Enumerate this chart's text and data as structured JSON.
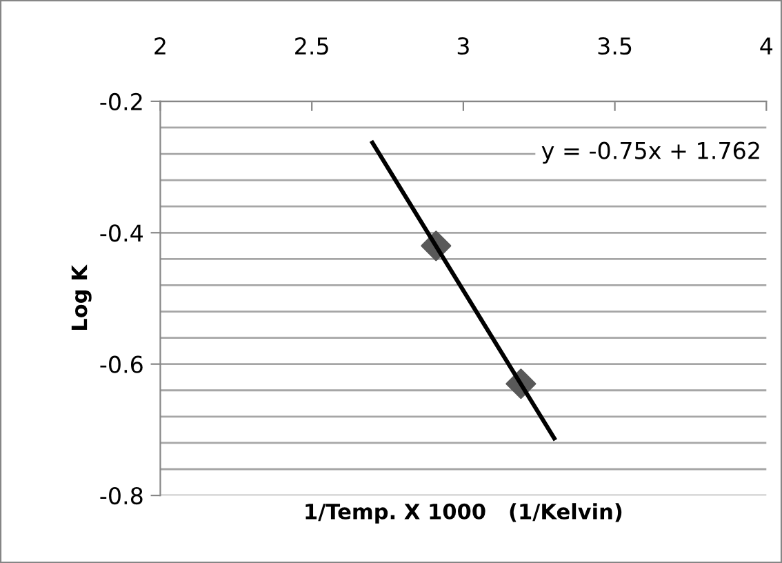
{
  "chart_data": {
    "type": "scatter",
    "xlabel": "1/Temp. X 1000   (1/Kelvin)",
    "ylabel": "Log K",
    "series": [
      {
        "color": "#595959",
        "x": [
          2.91,
          3.19
        ],
        "values": [
          -0.42,
          -0.63
        ],
        "marker": "diamond"
      },
      {
        "type": "line",
        "color": "#000000",
        "x": [
          2.7,
          3.3
        ],
        "values": [
          -0.263,
          -0.713
        ],
        "marker": "none"
      }
    ],
    "annotations": [
      "y = -0.75x + 1.762"
    ],
    "xlim": [
      2,
      4
    ],
    "xticks": [
      2,
      2.5,
      3,
      3.5,
      4
    ],
    "ylim": [
      -0.8,
      -0.2
    ],
    "yticks": [
      -0.8,
      {
        "value": -0.76,
        "label": null
      },
      {
        "value": -0.72,
        "label": null
      },
      {
        "value": -0.68,
        "label": null
      },
      {
        "value": -0.64,
        "label": null
      },
      -0.6,
      {
        "value": -0.56,
        "label": null
      },
      {
        "value": -0.52,
        "label": null
      },
      {
        "value": -0.48,
        "label": null
      },
      {
        "value": -0.44,
        "label": null
      },
      -0.4,
      {
        "value": -0.36,
        "label": null
      },
      {
        "value": -0.32,
        "label": null
      },
      {
        "value": -0.28,
        "label": null
      },
      {
        "value": -0.24,
        "label": null
      },
      -0.2
    ],
    "grid": "y",
    "legend": false
  }
}
